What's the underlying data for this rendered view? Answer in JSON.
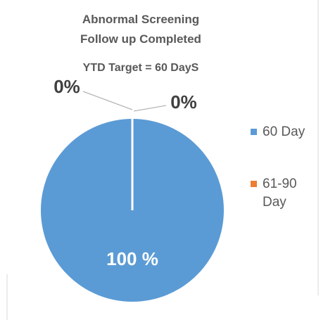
{
  "chart_data": {
    "type": "pie",
    "title": "Abnormal Screening Follow up Completed",
    "subtitle": "YTD Target = 60 DayS",
    "categories": [
      "60 Day",
      "61-90 Day",
      null
    ],
    "values": [
      100,
      0,
      0
    ],
    "value_labels": [
      "100 %",
      "0%",
      "0%"
    ],
    "colors": [
      "#5b9bd5",
      "#ed7d31",
      "#a5a5a5"
    ],
    "legend": "right"
  }
}
